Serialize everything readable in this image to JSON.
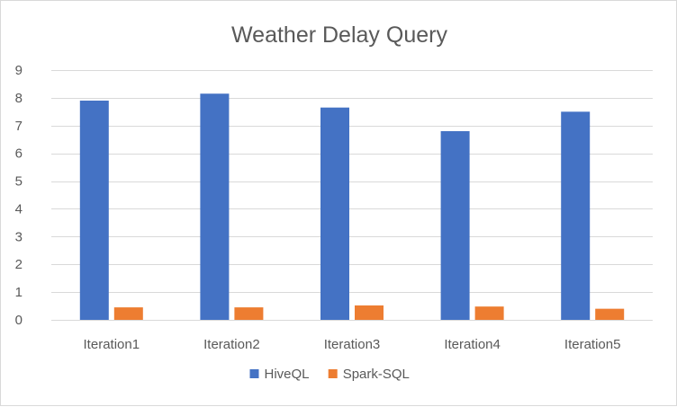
{
  "chart_data": {
    "type": "bar",
    "title": "Weather Delay Query",
    "categories": [
      "Iteration1",
      "Iteration2",
      "Iteration3",
      "Iteration4",
      "Iteration5"
    ],
    "series": [
      {
        "name": "HiveQL",
        "color": "#4472c4",
        "values": [
          7.9,
          8.15,
          7.65,
          6.8,
          7.5
        ]
      },
      {
        "name": "Spark-SQL",
        "color": "#ed7d31",
        "values": [
          0.45,
          0.45,
          0.52,
          0.48,
          0.4
        ]
      }
    ],
    "y_ticks": [
      "0",
      "1",
      "2",
      "3",
      "4",
      "5",
      "6",
      "7",
      "8",
      "9"
    ],
    "ylim": [
      0,
      9
    ],
    "grid": true,
    "legend_position": "bottom"
  }
}
